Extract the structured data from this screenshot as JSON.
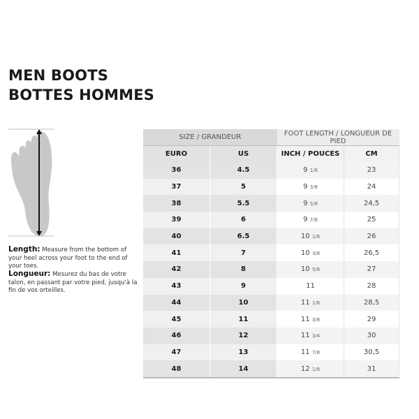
{
  "title": {
    "line1": "MEN BOOTS",
    "line2": "BOTTES HOMMES"
  },
  "description": {
    "en_label": "Length:",
    "en_text": " Measure from the bottom of your heel across your foot to the end of your toes.",
    "fr_label": "Longueur:",
    "fr_text": " Mesurez du bas de votre talon, en passant par votre pied, jusqu'à la fin de vos orteilles."
  },
  "table": {
    "group_headers": [
      "SIZE / GRANDEUR",
      "FOOT LENGTH / LONGUEUR DE PIED"
    ],
    "columns": [
      "EURO",
      "US",
      "INCH / POUCES",
      "CM"
    ],
    "rows": [
      {
        "euro": "36",
        "us": "4.5",
        "inch_whole": "9",
        "inch_frac": "1/8",
        "cm": "23"
      },
      {
        "euro": "37",
        "us": "5",
        "inch_whole": "9",
        "inch_frac": "3/8",
        "cm": "24"
      },
      {
        "euro": "38",
        "us": "5.5",
        "inch_whole": "9",
        "inch_frac": "5/8",
        "cm": "24,5"
      },
      {
        "euro": "39",
        "us": "6",
        "inch_whole": "9",
        "inch_frac": "7/8",
        "cm": "25"
      },
      {
        "euro": "40",
        "us": "6.5",
        "inch_whole": "10",
        "inch_frac": "1/8",
        "cm": "26"
      },
      {
        "euro": "41",
        "us": "7",
        "inch_whole": "10",
        "inch_frac": "3/8",
        "cm": "26,5"
      },
      {
        "euro": "42",
        "us": "8",
        "inch_whole": "10",
        "inch_frac": "5/8",
        "cm": "27"
      },
      {
        "euro": "43",
        "us": "9",
        "inch_whole": "11",
        "inch_frac": "",
        "cm": "28"
      },
      {
        "euro": "44",
        "us": "10",
        "inch_whole": "11",
        "inch_frac": "1/8",
        "cm": "28,5"
      },
      {
        "euro": "45",
        "us": "11",
        "inch_whole": "11",
        "inch_frac": "3/8",
        "cm": "29"
      },
      {
        "euro": "46",
        "us": "12",
        "inch_whole": "11",
        "inch_frac": "3/4",
        "cm": "30"
      },
      {
        "euro": "47",
        "us": "13",
        "inch_whole": "11",
        "inch_frac": "7/8",
        "cm": "30,5"
      },
      {
        "euro": "48",
        "us": "14",
        "inch_whole": "12",
        "inch_frac": "1/8",
        "cm": "31"
      }
    ]
  },
  "icons": {
    "foot": "foot-length-diagram"
  }
}
